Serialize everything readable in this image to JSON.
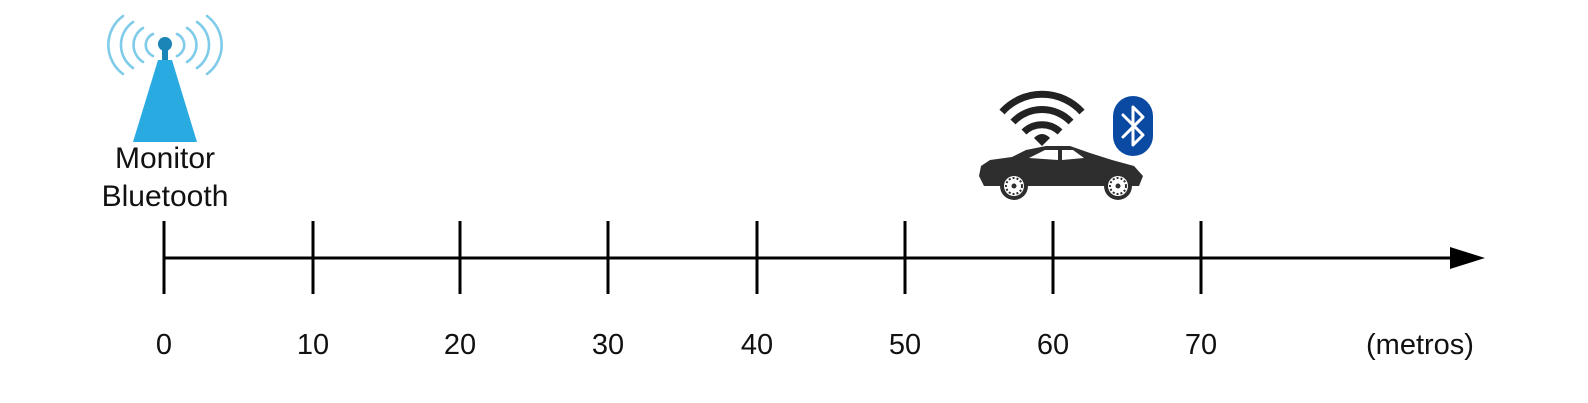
{
  "monitor": {
    "label_line1": "Monitor",
    "label_line2": "Bluetooth",
    "icon": "radio-tower-icon",
    "color": "#29abe2",
    "signal_color": "#7fcbea",
    "position": 0
  },
  "vehicle": {
    "icon": "car-icon",
    "position": 60,
    "wifi_icon": "wifi-icon",
    "bluetooth_icon": "bluetooth-icon",
    "bluetooth_color": "#0a4aa3",
    "car_color": "#2e2e2e"
  },
  "axis": {
    "ticks": [
      "0",
      "10",
      "20",
      "30",
      "40",
      "50",
      "60",
      "70"
    ],
    "unit": "(metros)",
    "color": "#000000"
  }
}
